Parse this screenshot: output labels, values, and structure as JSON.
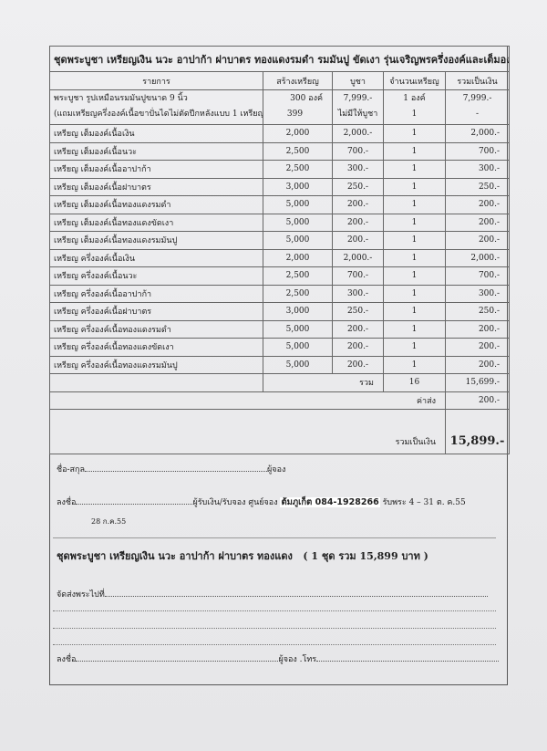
{
  "title": "ชุดพระบูชา เหรียญเงิน นวะ อาปาก้า ฝาบาตร ทองแดงรมดำ รมมันปู ขัดเงา รุ่นเจริญพรครึ่งองค์และเต็มองค์",
  "headers": [
    "รายการ",
    "สร้างเหรียญ",
    "บูชา",
    "จำนวนเหรียญ",
    "รวมเป็นเงิน"
  ],
  "first_row": {
    "lines": [
      "พระบูชา รูปเหมือนรมมันปูขนาด 9 นิ้ว",
      "(แถมเหรียญครึ่งองค์เนื้อขาปั่นไดไม่ตัดปีกหลังแบบ 1 เหรียญ)"
    ],
    "created": [
      "300  องค์",
      "399"
    ],
    "price": [
      "7,999.-",
      "ไม่มีให้บูชา"
    ],
    "qty": [
      "1  องค์",
      "1"
    ],
    "total": [
      "7,999.-",
      "-"
    ]
  },
  "rows": [
    {
      "item": "เหรียญ เต็มองค์เนื้อเงิน",
      "created": "2,000",
      "price": "2,000.-",
      "qty": "1",
      "total": "2,000.-"
    },
    {
      "item": "เหรียญ เต็มองค์เนื้อนวะ",
      "created": "2,500",
      "price": "700.-",
      "qty": "1",
      "total": "700.-"
    },
    {
      "item": "เหรียญ เต็มองค์เนื้ออาปาก้า",
      "created": "2,500",
      "price": "300.-",
      "qty": "1",
      "total": "300.-"
    },
    {
      "item": "เหรียญ เต็มองค์เนื้อฝาบาตร",
      "created": "3,000",
      "price": "250.-",
      "qty": "1",
      "total": "250.-"
    },
    {
      "item": "เหรียญ เต็มองค์เนื้อทองแดงรมดำ",
      "created": "5,000",
      "price": "200.-",
      "qty": "1",
      "total": "200.-"
    },
    {
      "item": "เหรียญ เต็มองค์เนื้อทองแดงขัดเงา",
      "created": "5,000",
      "price": "200.-",
      "qty": "1",
      "total": "200.-"
    },
    {
      "item": "เหรียญ เต็มองค์เนื้อทองแดงรมมันปู",
      "created": "5,000",
      "price": "200.-",
      "qty": "1",
      "total": "200.-"
    },
    {
      "item": "เหรียญ ครึ่งองค์เนื้อเงิน",
      "created": "2,000",
      "price": "2,000.-",
      "qty": "1",
      "total": "2,000.-"
    },
    {
      "item": "เหรียญ ครึ่งองค์เนื้อนวะ",
      "created": "2,500",
      "price": "700.-",
      "qty": "1",
      "total": "700.-"
    },
    {
      "item": "เหรียญ ครึ่งองค์เนื้ออาปาก้า",
      "created": "2,500",
      "price": "300.-",
      "qty": "1",
      "total": "300.-"
    },
    {
      "item": "เหรียญ ครึ่งองค์เนื้อฝาบาตร",
      "created": "3,000",
      "price": "250.-",
      "qty": "1",
      "total": "250.-"
    },
    {
      "item": "เหรียญ ครึ่งองค์เนื้อทองแดงรมดำ",
      "created": "5,000",
      "price": "200.-",
      "qty": "1",
      "total": "200.-"
    },
    {
      "item": "เหรียญ ครึ่งองค์เนื้อทองแดงขัดเงา",
      "created": "5,000",
      "price": "200.-",
      "qty": "1",
      "total": "200.-"
    },
    {
      "item": "เหรียญ ครึ่งองค์เนื้อทองแดงรมมันปู",
      "created": "5,000",
      "price": "200.-",
      "qty": "1",
      "total": "200.-"
    }
  ],
  "subtotal": {
    "label": "รวม",
    "qty": "16",
    "total": "15,699.-"
  },
  "shipping": {
    "label": "ค่าส่ง",
    "total": "200.-"
  },
  "grand": {
    "label": "รวมเป็นเงิน",
    "total": "15,899.-"
  },
  "form": {
    "name_label": "ชื่อ-สกุล",
    "name_suffix": "ผู้จอง",
    "sign_label": "ลงชื่อ",
    "receiver": "ผู้รับเงิน/รับจอง   ศูนย์จอง",
    "stamp": "ต้มภูเก็ต 084-1928266",
    "receive_period": "รับพระ 4 – 31 ต. ค.55",
    "date": "28 ก.ค.55",
    "set_line": "ชุดพระบูชา เหรียญเงิน นวะ อาปาก้า ฝาบาตร ทองแดง",
    "set_total": "( 1 ชุด  รวม 15,899 บาท )",
    "ship_label": "จัดส่งพระไปที่",
    "sign2_label": "ลงชื่อ",
    "sign2_suffix": "ผู้จอง .โทร"
  }
}
